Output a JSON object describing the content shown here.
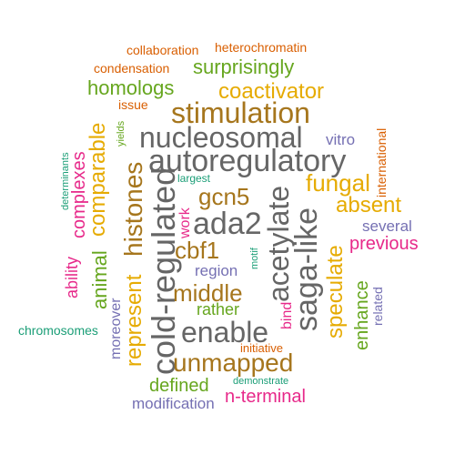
{
  "palette": {
    "dark": "#666666",
    "brown": "#a6761d",
    "gold": "#e6ab02",
    "orange": "#d95f02",
    "green": "#66a61e",
    "teal": "#1b9e77",
    "pink": "#e7298a",
    "purple": "#7570b3"
  },
  "words": {
    "collaboration": "collaboration",
    "heterochromatin": "heterochromatin",
    "condensation": "condensation",
    "surprisingly": "surprisingly",
    "homologs": "homologs",
    "coactivator": "coactivator",
    "issue": "issue",
    "stimulation": "stimulation",
    "international": "international",
    "yields": "yields",
    "determinants": "determinants",
    "nucleosomal": "nucleosomal",
    "vitro": "vitro",
    "complexes": "complexes",
    "comparable": "comparable",
    "autoregulatory": "autoregulatory",
    "histones": "histones",
    "largest": "largest",
    "fungal": "fungal",
    "acetylate": "acetylate",
    "gcn5": "gcn5",
    "work": "work",
    "absent": "absent",
    "cold_regulated": "cold-regulated",
    "ada2": "ada2",
    "saga_like": "saga-like",
    "several": "several",
    "ability": "ability",
    "animal": "animal",
    "cbf1": "cbf1",
    "motif": "motif",
    "previous": "previous",
    "region": "region",
    "speculate": "speculate",
    "represent": "represent",
    "middle": "middle",
    "enhance": "enhance",
    "related": "related",
    "rather": "rather",
    "bind": "bind",
    "chromosomes": "chromosomes",
    "moreover": "moreover",
    "enable": "enable",
    "initiative": "initiative",
    "unmapped": "unmapped",
    "defined": "defined",
    "demonstrate": "demonstrate",
    "n_terminal": "n-terminal",
    "modification": "modification"
  }
}
